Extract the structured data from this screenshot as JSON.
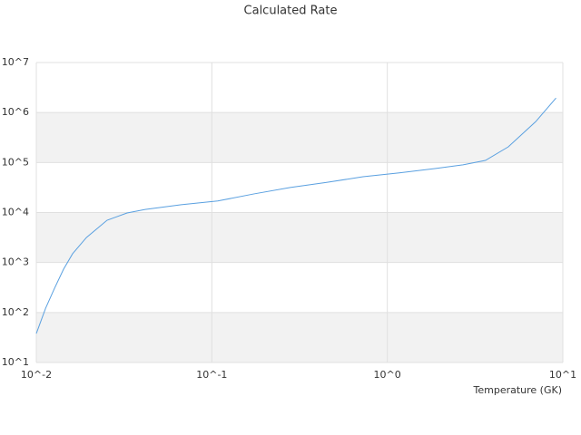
{
  "chart_data": {
    "type": "line",
    "title": "Calculated Rate",
    "x_label": "Temperature (GK)",
    "x_log": true,
    "y_log": true,
    "grid": true,
    "alternating_bands": true,
    "band_color": "#f2f2f2",
    "xlim": [
      0.01,
      10
    ],
    "ylim": [
      10,
      10000000
    ],
    "xticks": [
      {
        "value": 0.01,
        "label": "10^-2"
      },
      {
        "value": 0.1,
        "label": "10^-1"
      },
      {
        "value": 1,
        "label": "10^0"
      },
      {
        "value": 10,
        "label": "10^1"
      }
    ],
    "yticks": [
      {
        "value": 10,
        "label": "10^1"
      },
      {
        "value": 100,
        "label": "10^2"
      },
      {
        "value": 1000,
        "label": "10^3"
      },
      {
        "value": 10000,
        "label": "10^4"
      },
      {
        "value": 100000,
        "label": "10^5"
      },
      {
        "value": 1000000,
        "label": "10^6"
      },
      {
        "value": 10000000,
        "label": "10^7"
      }
    ],
    "x": [
      0.01,
      0.0113,
      0.0127,
      0.0143,
      0.0161,
      0.0193,
      0.0253,
      0.0329,
      0.0417,
      0.067,
      0.108,
      0.174,
      0.28,
      0.451,
      0.727,
      1.17,
      1.89,
      2.7,
      3.62,
      4.89,
      7.0,
      9.14
    ],
    "series": [
      {
        "color": "#5aa0e0",
        "values": [
          38,
          122,
          306,
          736,
          1500,
          3160,
          7000,
          9800,
          11500,
          14300,
          17000,
          23600,
          31600,
          40000,
          52000,
          62000,
          76000,
          90000,
          110000,
          206000,
          656000,
          1950000
        ]
      }
    ]
  }
}
